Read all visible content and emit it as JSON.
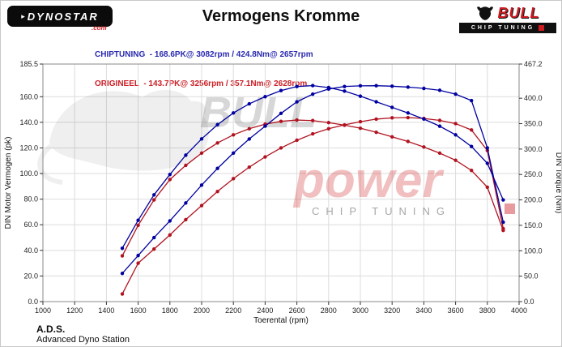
{
  "header": {
    "app_logo": {
      "text": "DYNOSTAR",
      "suffix": ".com"
    },
    "title": "Vermogens Kromme",
    "brand": {
      "name": "BULL",
      "strip": "CHIP TUNING"
    }
  },
  "legend": {
    "chiptuning": "CHIPTUNING  - 168.6PK@ 3082rpm / 424.8Nm@ 2657rpm",
    "origineel": "ORIGINEEL  - 143.7PK@ 3256rpm / 357.1Nm@ 2628rpm"
  },
  "watermark": {
    "bull": "BULL",
    "power": "power",
    "strip": "CHIP TUNING"
  },
  "footer": {
    "abbr": "A.D.S.",
    "name": "Advanced Dyno Station"
  },
  "colors": {
    "chiptuning": "#0000a0",
    "origineel": "#b01320",
    "accent_red": "#cc1b21"
  },
  "chart_data": {
    "type": "line",
    "title": "Vermogens Kromme",
    "xlabel": "Toerental (rpm)",
    "ylabel_left": "DIN Motor Vermogen (pk)",
    "ylabel_right": "DIN Torque (Nm)",
    "xlim": [
      1000,
      4000
    ],
    "ylim_left": [
      0,
      185.5
    ],
    "ylim_right": [
      0,
      467.2
    ],
    "grid": true,
    "legend_position": "top-left",
    "x_ticks": [
      1000,
      1200,
      1400,
      1600,
      1800,
      2000,
      2200,
      2400,
      2600,
      2800,
      3000,
      3200,
      3400,
      3600,
      3800,
      4000
    ],
    "y_ticks_left": [
      0,
      20,
      40,
      60,
      80,
      100,
      120,
      140,
      160,
      185.5
    ],
    "y_ticks_right": [
      0,
      50,
      100,
      150,
      200,
      250,
      300,
      350,
      400,
      467.2
    ],
    "x": [
      1500,
      1600,
      1700,
      1800,
      1900,
      2000,
      2100,
      2200,
      2300,
      2400,
      2500,
      2600,
      2700,
      2800,
      2900,
      3000,
      3100,
      3200,
      3300,
      3400,
      3500,
      3600,
      3700,
      3800,
      3900
    ],
    "series": [
      {
        "name": "ORIGINEEL torque (Nm)",
        "axis": "right",
        "color": "#b01320",
        "values": [
          90,
          150,
          200,
          240,
          268,
          292,
          312,
          328,
          340,
          349,
          354.5,
          357.1,
          356,
          352,
          347,
          341,
          333,
          324,
          315,
          304,
          292,
          278,
          258,
          225,
          140
        ]
      },
      {
        "name": "ORIGINEEL power (PK)",
        "axis": "left",
        "color": "#b01320",
        "values": [
          6,
          30,
          41,
          52,
          64,
          75,
          86,
          96,
          105,
          113,
          120,
          126,
          131,
          135,
          138,
          140.5,
          142.5,
          143.5,
          143.7,
          143,
          141.5,
          139,
          134,
          118,
          57
        ]
      },
      {
        "name": "CHIPTUNING torque (Nm)",
        "axis": "right",
        "color": "#0000a0",
        "values": [
          105,
          160,
          210,
          250,
          288,
          320,
          348,
          371,
          389,
          403,
          415,
          423,
          424.8,
          421,
          414,
          404,
          393,
          382,
          371,
          359,
          345,
          328,
          305,
          272,
          200
        ]
      },
      {
        "name": "CHIPTUNING power (PK)",
        "axis": "left",
        "color": "#0000a0",
        "values": [
          22,
          36,
          50,
          63,
          77,
          91,
          104,
          116,
          127,
          137,
          147,
          156,
          162,
          166,
          168,
          168.5,
          168.6,
          168.2,
          167.5,
          166.5,
          165,
          162,
          157,
          120,
          62
        ]
      }
    ]
  }
}
